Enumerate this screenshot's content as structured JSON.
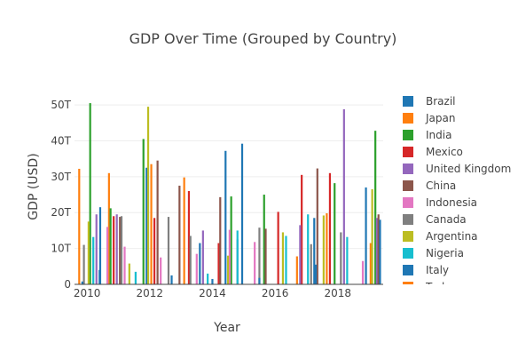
{
  "chart_data": {
    "type": "bar",
    "title": "GDP Over Time (Grouped by Country)",
    "xlabel": "Year",
    "ylabel": "GDP (USD)",
    "x_ticks": [
      "2010",
      "2012",
      "2014",
      "2016",
      "2018"
    ],
    "y_ticks": [
      "0",
      "10T",
      "20T",
      "30T",
      "40T",
      "50T"
    ],
    "xlim": [
      2009.6,
      2019.45
    ],
    "ylim": [
      0,
      52
    ],
    "grid": true,
    "legend_position": "right",
    "series": [
      {
        "name": "Brazil",
        "color": "#1f77b4",
        "points": [
          [
            2010.42,
            21.5
          ],
          [
            2011.9,
            32.5
          ],
          [
            2013.6,
            11.5
          ],
          [
            2014.42,
            37.2
          ],
          [
            2014.95,
            39.2
          ],
          [
            2017.25,
            18.5
          ],
          [
            2018.9,
            27
          ]
        ]
      },
      {
        "name": "Japan",
        "color": "#ff7f0e",
        "points": [
          [
            2009.75,
            32.2
          ],
          [
            2010.7,
            31
          ],
          [
            2012.05,
            33.5
          ],
          [
            2013.1,
            29.8
          ],
          [
            2016.7,
            7.8
          ],
          [
            2017.65,
            19.8
          ],
          [
            2019.05,
            11.5
          ]
        ]
      },
      {
        "name": "India",
        "color": "#2ca02c",
        "points": [
          [
            2010.1,
            50.5
          ],
          [
            2010.75,
            21.2
          ],
          [
            2011.8,
            40.5
          ],
          [
            2014.6,
            24.5
          ],
          [
            2015.65,
            25
          ],
          [
            2017.9,
            28.2
          ],
          [
            2019.2,
            42.8
          ]
        ]
      },
      {
        "name": "Mexico",
        "color": "#d62728",
        "points": [
          [
            2010.85,
            19
          ],
          [
            2012.15,
            18.5
          ],
          [
            2013.25,
            26
          ],
          [
            2014.2,
            11.5
          ],
          [
            2016.1,
            20.2
          ],
          [
            2016.85,
            30.5
          ],
          [
            2017.75,
            31
          ]
        ]
      },
      {
        "name": "United Kingdom",
        "color": "#9467bd",
        "points": [
          [
            2010.3,
            19.5
          ],
          [
            2010.95,
            19.5
          ],
          [
            2013.7,
            15
          ],
          [
            2014.8,
            12.5
          ],
          [
            2016.8,
            16.5
          ],
          [
            2018.2,
            48.8
          ],
          [
            2019.25,
            18.5
          ]
        ]
      },
      {
        "name": "China",
        "color": "#8c564b",
        "points": [
          [
            2011.05,
            18.8
          ],
          [
            2012.25,
            34.5
          ],
          [
            2012.95,
            27.5
          ],
          [
            2014.25,
            24.3
          ],
          [
            2015.7,
            15.5
          ],
          [
            2017.35,
            32.3
          ],
          [
            2019.3,
            19.5
          ]
        ]
      },
      {
        "name": "Indonesia",
        "color": "#e377c2",
        "points": [
          [
            2010.65,
            16
          ],
          [
            2011.2,
            10.5
          ],
          [
            2012.35,
            7.5
          ],
          [
            2013.5,
            8.5
          ],
          [
            2014.55,
            15.2
          ],
          [
            2015.35,
            11.8
          ],
          [
            2018.8,
            6.5
          ]
        ]
      },
      {
        "name": "Canada",
        "color": "#7f7f7f",
        "points": [
          [
            2009.9,
            11
          ],
          [
            2011.1,
            19
          ],
          [
            2012.6,
            18.8
          ],
          [
            2013.3,
            13.5
          ],
          [
            2015.5,
            15.8
          ],
          [
            2017.15,
            11.2
          ],
          [
            2018.1,
            14.5
          ]
        ]
      },
      {
        "name": "Argentina",
        "color": "#bcbd22",
        "points": [
          [
            2010.05,
            17.5
          ],
          [
            2011.35,
            5.8
          ],
          [
            2011.95,
            49.5
          ],
          [
            2014.5,
            8
          ],
          [
            2016.25,
            14.5
          ],
          [
            2017.55,
            19.2
          ],
          [
            2019.1,
            26.5
          ]
        ]
      },
      {
        "name": "Nigeria",
        "color": "#17becf",
        "points": [
          [
            2010.2,
            13.2
          ],
          [
            2011.55,
            3.5
          ],
          [
            2013.85,
            3
          ],
          [
            2014.8,
            15
          ],
          [
            2016.35,
            13.5
          ],
          [
            2017.05,
            19.5
          ],
          [
            2018.3,
            13.2
          ]
        ]
      },
      {
        "name": "Italy",
        "color": "#1f77b4",
        "points": [
          [
            2009.85,
            0.8
          ],
          [
            2010.4,
            4
          ],
          [
            2012.7,
            2.5
          ],
          [
            2014.0,
            1.5
          ],
          [
            2015.5,
            1.8
          ],
          [
            2017.3,
            5.5
          ],
          [
            2019.35,
            18
          ]
        ]
      }
    ],
    "legend_extra_visible": "Turkey"
  }
}
